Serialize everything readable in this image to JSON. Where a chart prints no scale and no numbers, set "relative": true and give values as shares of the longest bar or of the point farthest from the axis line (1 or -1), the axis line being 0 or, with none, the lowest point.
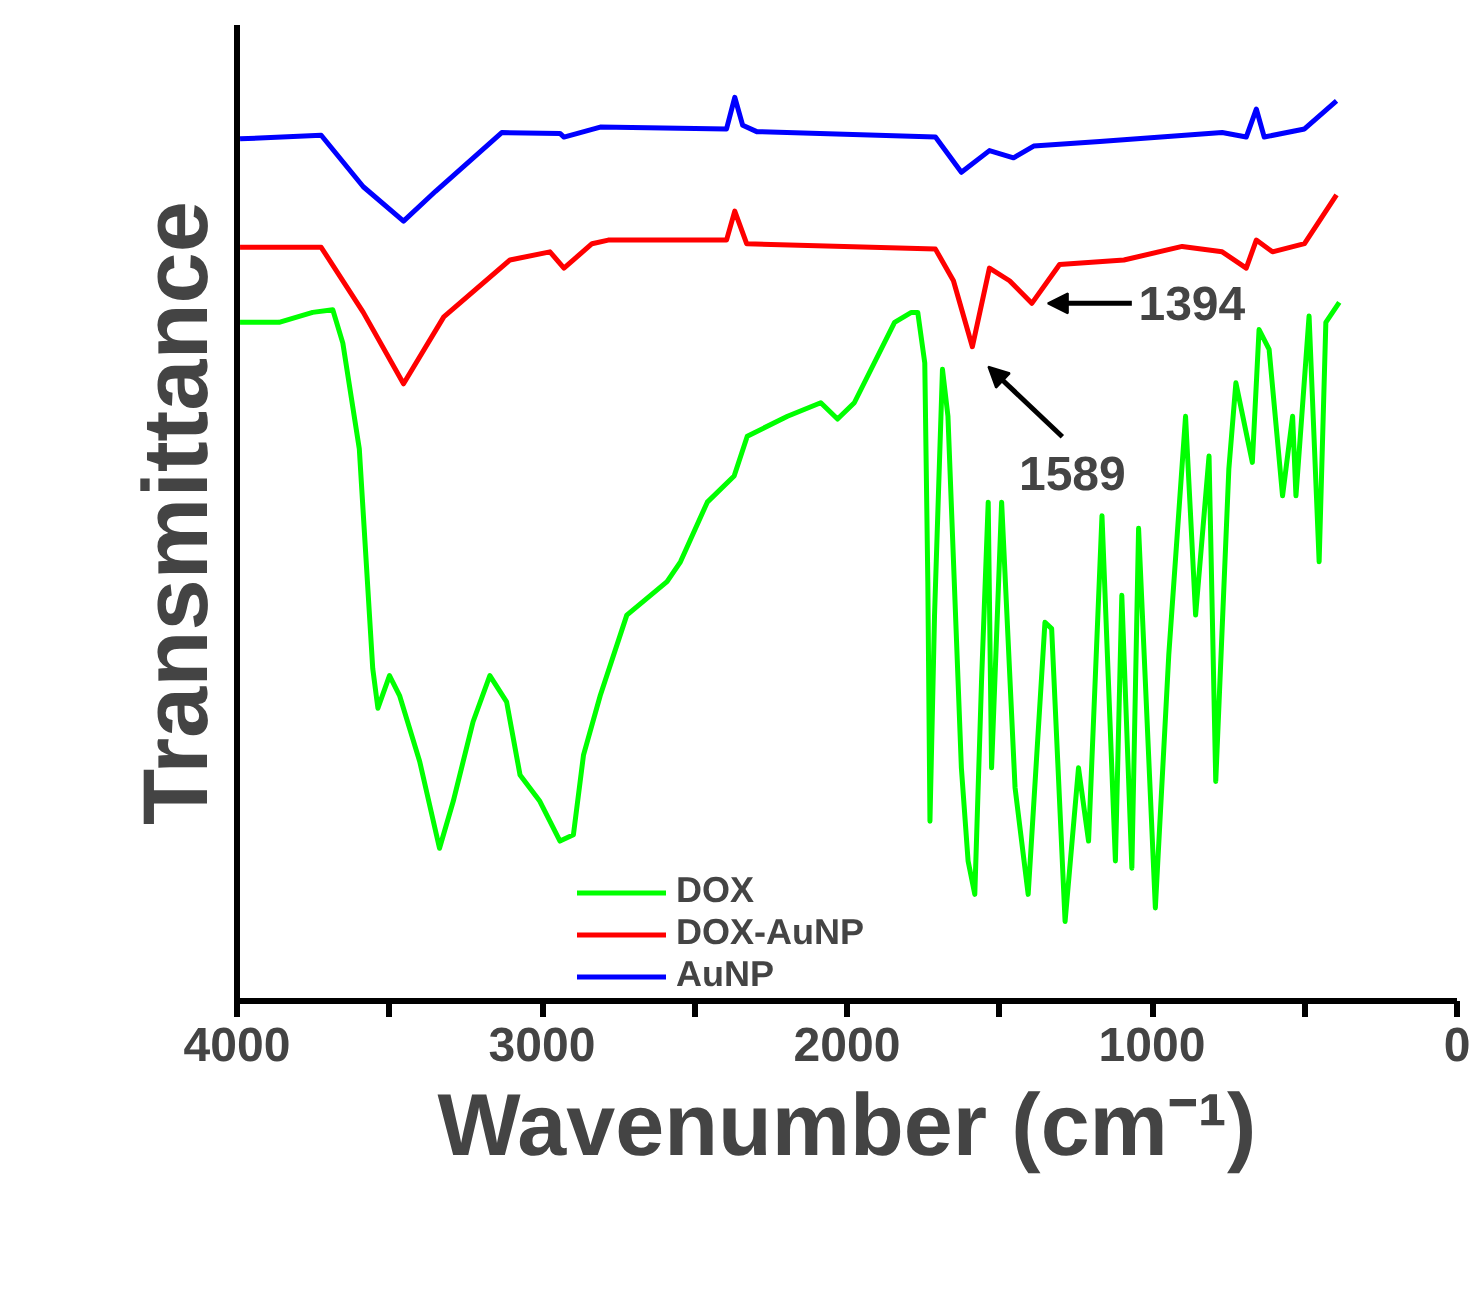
{
  "chart_data": {
    "type": "line",
    "xlabel": "Wavenumber (cm⁻¹)",
    "ylabel": "Transmittance",
    "relative": true,
    "tick_labels": "x",
    "grid": false,
    "legend": "bottom left",
    "marker": "none",
    "line_style": "solid",
    "xlim": [
      4000,
      0
    ],
    "xticks": [
      4000,
      {
        "value": 3500,
        "label": null
      },
      3000,
      {
        "value": 2500,
        "label": null
      },
      2000,
      {
        "value": 1500,
        "label": null
      },
      1000,
      {
        "value": 500,
        "label": null
      },
      0
    ],
    "annotations": [
      {
        "text": "1589",
        "x": 1589,
        "y": 0.724
      },
      {
        "text": "1394",
        "x": 1394,
        "y": 0.772
      }
    ],
    "series": [
      {
        "name": "DOX",
        "color": "#00ff00",
        "x": [
          3990,
          3862,
          3752,
          3686,
          3653,
          3599,
          3555,
          3538,
          3500,
          3467,
          3401,
          3336,
          3291,
          3226,
          3171,
          3116,
          3072,
          3007,
          2941,
          2897,
          2864,
          2809,
          2722,
          2590,
          2546,
          2458,
          2370,
          2327,
          2195,
          2086,
          2031,
          1976,
          1844,
          1789,
          1768,
          1745,
          1735,
          1728,
          1713,
          1687,
          1669,
          1625,
          1603,
          1581,
          1559,
          1537,
          1526,
          1493,
          1449,
          1406,
          1351,
          1329,
          1285,
          1241,
          1208,
          1164,
          1120,
          1099,
          1066,
          1044,
          989,
          945,
          890,
          857,
          813,
          791,
          748,
          725,
          671,
          649,
          616,
          572,
          539,
          528,
          485,
          452,
          430,
          386
        ],
        "values": [
          0.751,
          0.751,
          0.762,
          0.765,
          0.728,
          0.611,
          0.368,
          0.324,
          0.36,
          0.338,
          0.265,
          0.169,
          0.221,
          0.309,
          0.36,
          0.331,
          0.25,
          0.221,
          0.177,
          0.184,
          0.272,
          0.338,
          0.427,
          0.464,
          0.486,
          0.552,
          0.581,
          0.625,
          0.647,
          0.662,
          0.644,
          0.662,
          0.751,
          0.762,
          0.762,
          0.706,
          0.464,
          0.199,
          0.427,
          0.699,
          0.647,
          0.258,
          0.155,
          0.118,
          0.353,
          0.552,
          0.258,
          0.552,
          0.236,
          0.118,
          0.419,
          0.412,
          0.088,
          0.258,
          0.177,
          0.537,
          0.155,
          0.449,
          0.147,
          0.523,
          0.103,
          0.383,
          0.647,
          0.427,
          0.603,
          0.243,
          0.589,
          0.684,
          0.596,
          0.743,
          0.721,
          0.559,
          0.647,
          0.559,
          0.758,
          0.486,
          0.751,
          0.773
        ]
      },
      {
        "name": "DOX-AuNP",
        "color": "#ff0000",
        "x": [
          3990,
          3724,
          3586,
          3454,
          3322,
          3105,
          2974,
          2928,
          2836,
          2783,
          2395,
          2368,
          2329,
          1710,
          1651,
          1589,
          1533,
          1467,
          1394,
          1303,
          1092,
          901,
          770,
          691,
          658,
          605,
          500,
          395
        ],
        "values": [
          0.834,
          0.834,
          0.762,
          0.683,
          0.757,
          0.82,
          0.829,
          0.811,
          0.838,
          0.842,
          0.842,
          0.874,
          0.838,
          0.832,
          0.797,
          0.724,
          0.811,
          0.797,
          0.772,
          0.815,
          0.82,
          0.835,
          0.829,
          0.811,
          0.842,
          0.829,
          0.838,
          0.892
        ]
      },
      {
        "name": "AuNP",
        "color": "#0000ff",
        "x": [
          3990,
          3724,
          3586,
          3454,
          3349,
          3132,
          2941,
          2928,
          2809,
          2395,
          2368,
          2342,
          2296,
          1710,
          1625,
          1533,
          1454,
          1388,
          1171,
          770,
          691,
          658,
          632,
          500,
          395
        ],
        "values": [
          0.954,
          0.958,
          0.901,
          0.863,
          0.896,
          0.961,
          0.96,
          0.956,
          0.967,
          0.965,
          1.0,
          0.969,
          0.962,
          0.956,
          0.917,
          0.941,
          0.933,
          0.946,
          0.951,
          0.961,
          0.956,
          0.987,
          0.956,
          0.965,
          0.996
        ]
      }
    ]
  }
}
